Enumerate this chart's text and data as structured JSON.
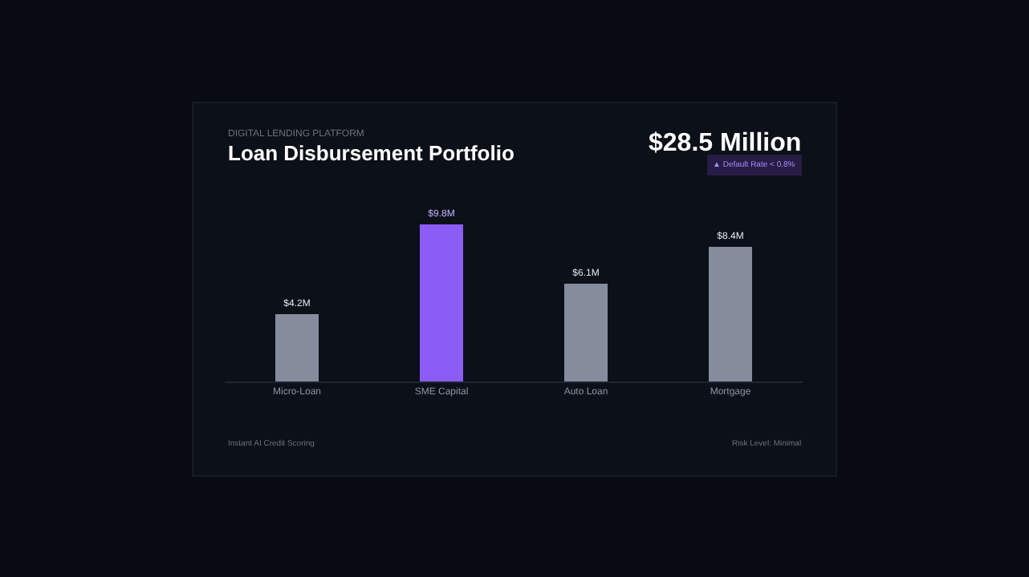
{
  "chart_data": {
    "type": "bar",
    "title": "Loan Disbursement Portfolio",
    "subtitle": "DIGITAL LENDING PLATFORM",
    "categories": [
      "Micro-Loan",
      "SME Capital",
      "Auto Loan",
      "Mortgage"
    ],
    "values": [
      4.2,
      9.8,
      6.1,
      8.4
    ],
    "colors": [
      "#858d9c",
      "#8b5cf6",
      "#858d9c",
      "#858d9c"
    ],
    "value_labels": [
      "$4.2M",
      "$9.8M",
      "$6.1M",
      "$8.4M"
    ],
    "annotations": [
      "$28.5 Million",
      "▲ Default Rate < 0.8%",
      "Instant AI Credit Scoring",
      "Risk Level: Minimal"
    ],
    "grid": false,
    "legend": false
  }
}
